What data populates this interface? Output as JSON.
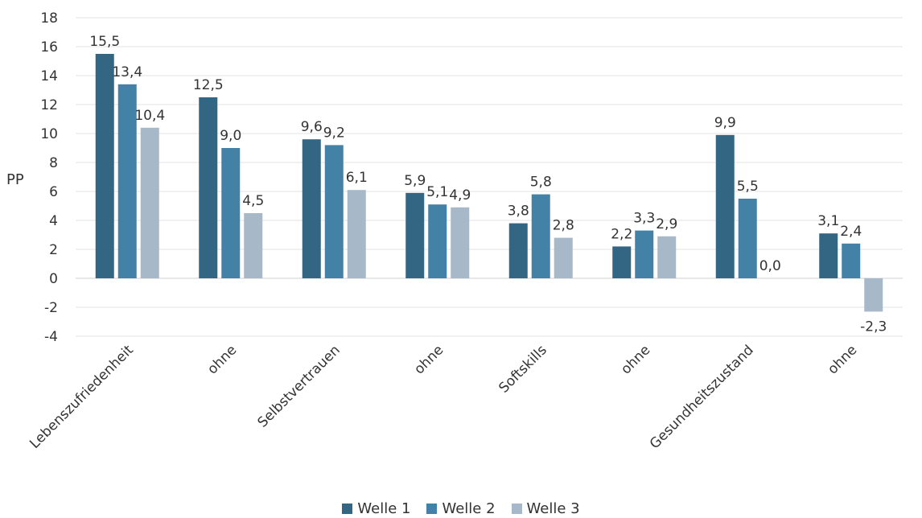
{
  "chart_data": {
    "type": "bar",
    "ylabel": "PP",
    "ylim": [
      -4,
      18
    ],
    "yticks": [
      18,
      16,
      14,
      12,
      10,
      8,
      6,
      4,
      2,
      0,
      -2,
      -4
    ],
    "grid": true,
    "legend_position": "bottom",
    "categories": [
      "Lebenszufriedenheit",
      "ohne",
      "Selbstvertrauen",
      "ohne",
      "Softskills",
      "ohne",
      "Gesundheitszustand",
      "ohne"
    ],
    "series": [
      {
        "name": "Welle 1",
        "color": "#336683",
        "values": [
          15.5,
          12.5,
          9.6,
          5.9,
          3.8,
          2.2,
          9.9,
          3.1
        ],
        "labels": [
          "15,5",
          "12,5",
          "9,6",
          "5,9",
          "3,8",
          "2,2",
          "9,9",
          "3,1"
        ]
      },
      {
        "name": "Welle 2",
        "color": "#4381a6",
        "values": [
          13.4,
          9.0,
          9.2,
          5.1,
          5.8,
          3.3,
          5.5,
          2.4
        ],
        "labels": [
          "13,4",
          "9,0",
          "9,2",
          "5,1",
          "5,8",
          "3,3",
          "5,5",
          "2,4"
        ]
      },
      {
        "name": "Welle 3",
        "color": "#a7b9c9",
        "values": [
          10.4,
          4.5,
          6.1,
          4.9,
          2.8,
          2.9,
          0.0,
          -2.3
        ],
        "labels": [
          "10,4",
          "4,5",
          "6,1",
          "4,9",
          "2,8",
          "2,9",
          "0,0",
          "-2,3"
        ]
      }
    ]
  }
}
